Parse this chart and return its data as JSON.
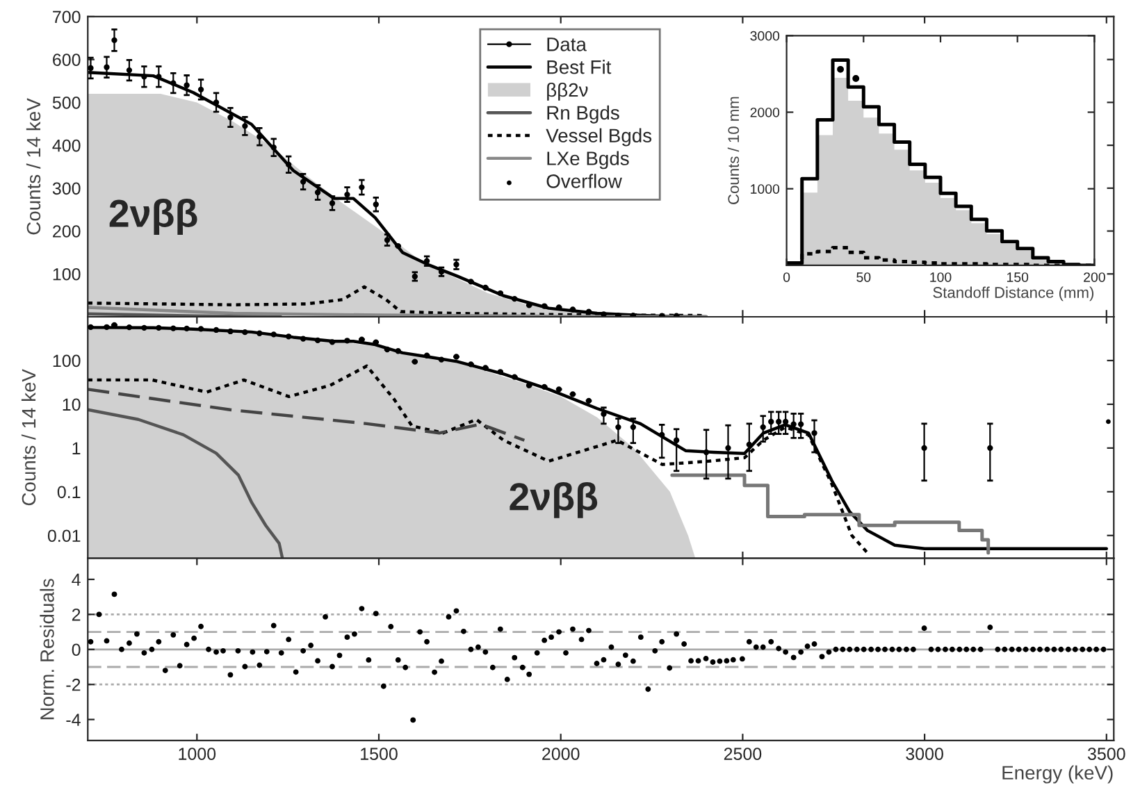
{
  "chart_data": [
    {
      "type": "line",
      "ylabel": "Counts / 14 keV",
      "xlim": [
        700,
        3520
      ],
      "ylim": [
        0,
        700
      ],
      "xticks": [
        1000,
        1500,
        2000,
        2500,
        3000,
        3500
      ],
      "yticks": [
        100,
        200,
        300,
        400,
        500,
        600,
        700
      ],
      "tick_labels": "y",
      "legend": "top",
      "annotations": [
        "2νββ"
      ],
      "series": [
        {
          "name": "Data",
          "type": "scatter",
          "marker": "circle",
          "color": "#000000",
          "x": [
            708,
            752,
            773,
            814,
            855,
            895,
            935,
            972,
            1011,
            1053,
            1092,
            1132,
            1172,
            1211,
            1252,
            1292,
            1332,
            1372,
            1413,
            1453,
            1492,
            1523,
            1553,
            1599,
            1632,
            1672,
            1713,
            1753,
            1793,
            1834,
            1873,
            1913,
            1955,
            1995,
            2033,
            2077,
            2118,
            2158,
            2199,
            2278,
            2318
          ],
          "values": [
            580,
            582,
            645,
            575,
            560,
            560,
            545,
            540,
            530,
            500,
            465,
            445,
            420,
            395,
            355,
            315,
            290,
            265,
            285,
            302,
            262,
            179,
            165,
            94,
            130,
            105,
            122,
            82,
            68,
            55,
            42,
            27,
            25,
            22,
            17,
            12,
            6,
            3,
            3,
            2,
            2
          ],
          "errors": [
            24,
            24,
            25,
            24,
            24,
            24,
            23,
            23,
            23,
            22,
            22,
            21,
            20,
            20,
            19,
            18,
            17,
            16,
            17,
            17,
            16,
            13,
            null,
            10,
            11,
            10,
            11,
            null,
            null,
            null,
            null,
            null,
            null,
            null,
            null,
            null,
            null,
            null,
            null,
            null,
            null
          ]
        },
        {
          "name": "Best Fit",
          "color": "#000000",
          "line_style": "solid",
          "x": [
            700,
            880,
            990,
            1150,
            1265,
            1377,
            1430,
            1490,
            1565,
            1640,
            1715,
            1843,
            1967,
            2100,
            2200,
            2300,
            2400
          ],
          "values": [
            570,
            562,
            523,
            449,
            341,
            276,
            276,
            231,
            150,
            120,
            95,
            49,
            20,
            8,
            4,
            1,
            0
          ]
        },
        {
          "name": "ββ2ν",
          "type": "area",
          "color": "#d0d0d0",
          "x": [
            700,
            900,
            1000,
            1100,
            1200,
            1300,
            1400,
            1500,
            1600,
            1700,
            1800,
            1900,
            2000,
            2100,
            2200,
            2300,
            2400
          ],
          "values": [
            520,
            520,
            500,
            455,
            400,
            330,
            265,
            205,
            140,
            95,
            55,
            30,
            15,
            7,
            3,
            1,
            0
          ]
        },
        {
          "name": "Rn Bgds",
          "color": "#555555",
          "line_style": "solid",
          "x": [
            700,
            1000,
            1230
          ],
          "values": [
            7,
            2,
            0
          ]
        },
        {
          "name": "Vessel Bgds",
          "color": "#000000",
          "line_style": "dotted",
          "x": [
            700,
            900,
            1100,
            1300,
            1400,
            1460,
            1520,
            1560,
            1700,
            2000,
            2400
          ],
          "values": [
            32,
            30,
            28,
            30,
            40,
            70,
            40,
            12,
            8,
            5,
            3
          ]
        },
        {
          "name": "LXe Bgds",
          "color": "#888888",
          "line_style": "solid",
          "x": [
            700,
            1100,
            1500,
            2000,
            2400
          ],
          "values": [
            22,
            8,
            4,
            1,
            0
          ]
        }
      ]
    },
    {
      "type": "line",
      "ylabel": "Counts / 14 keV",
      "log": true,
      "xlim": [
        700,
        3520
      ],
      "ylim": [
        0.003,
        1000
      ],
      "xticks": [
        1000,
        1500,
        2000,
        2500,
        3000,
        3500
      ],
      "yticks": [
        0.01,
        0.1,
        1,
        10,
        100
      ],
      "tick_labels": "y",
      "annotations": [
        "2νββ"
      ],
      "series": [
        {
          "type": "area",
          "color": "#d0d0d0",
          "x": [
            700,
            900,
            1000,
            1100,
            1200,
            1300,
            1400,
            1500,
            1600,
            1700,
            1800,
            1900,
            2000,
            2100,
            2200,
            2300,
            2350,
            2370
          ],
          "values": [
            520,
            520,
            500,
            455,
            400,
            330,
            265,
            205,
            140,
            95,
            55,
            30,
            15,
            5,
            1,
            0.1,
            0.01,
            0.003
          ]
        },
        {
          "color": "#000000",
          "line_style": "solid",
          "x": [
            700,
            880,
            990,
            1150,
            1265,
            1377,
            1430,
            1490,
            1565,
            1640,
            1715,
            1843,
            1967,
            2100,
            2219,
            2343,
            2420,
            2505,
            2557,
            2617,
            2681,
            2745,
            2794,
            2843,
            2918,
            3000,
            3500
          ],
          "values": [
            570,
            562,
            523,
            449,
            341,
            276,
            276,
            231,
            150,
            120,
            95,
            49,
            22,
            8,
            3.6,
            0.87,
            0.8,
            0.75,
            2.2,
            3.4,
            2.2,
            0.18,
            0.035,
            0.013,
            0.006,
            0.005,
            0.005
          ]
        },
        {
          "color": "#000000",
          "line_style": "dotted",
          "x": [
            700,
            877,
            1027,
            1129,
            1253,
            1366,
            1467,
            1542,
            1591,
            1677,
            1768,
            1843,
            1967,
            2155,
            2279,
            2407,
            2505,
            2557,
            2617,
            2681,
            2745,
            2800,
            2843
          ],
          "values": [
            36,
            36,
            19,
            36,
            15,
            27,
            75,
            13,
            3.2,
            2.2,
            4.5,
            1.5,
            0.5,
            1.5,
            0.42,
            0.5,
            0.6,
            1.5,
            3,
            2,
            0.15,
            0.01,
            0.004
          ]
        },
        {
          "color": "#444444",
          "line_style": "dashed",
          "x": [
            700,
            1091,
            1467,
            1666,
            1780,
            1900
          ],
          "values": [
            22,
            7.5,
            3.6,
            2.2,
            3.5,
            1.5
          ]
        },
        {
          "color": "#555555",
          "line_style": "solid",
          "x": [
            700,
            839,
            963,
            1053,
            1114,
            1151,
            1189,
            1226,
            1235
          ],
          "values": [
            7.5,
            4.5,
            2.0,
            0.76,
            0.24,
            0.056,
            0.017,
            0.0066,
            0.003
          ]
        },
        {
          "type": "step",
          "color": "#777777",
          "x": [
            2306,
            2505,
            2569,
            2670,
            2720,
            2820,
            2918,
            2980,
            3095,
            3158,
            3175
          ],
          "values": [
            0.24,
            0.14,
            0.027,
            0.03,
            0.03,
            0.017,
            0.02,
            0.02,
            0.013,
            0.008,
            0.004
          ]
        },
        {
          "type": "scatter",
          "marker": "circle",
          "color": "#000000",
          "x": [
            708,
            752,
            773,
            814,
            855,
            895,
            935,
            972,
            1011,
            1053,
            1092,
            1132,
            1172,
            1211,
            1252,
            1292,
            1332,
            1372,
            1413,
            1453,
            1492,
            1523,
            1553,
            1599,
            1632,
            1672,
            1713,
            1753,
            1793,
            1834,
            1873,
            1913,
            1955,
            1995,
            2033,
            2077,
            2118,
            2158,
            2199,
            2278,
            2318,
            2400,
            2460,
            2518,
            2556,
            2578,
            2599,
            2618,
            2640,
            2660,
            2697,
            2999,
            3180
          ],
          "values": [
            580,
            582,
            645,
            575,
            560,
            560,
            545,
            540,
            530,
            500,
            465,
            445,
            420,
            395,
            355,
            315,
            290,
            265,
            285,
            302,
            262,
            179,
            165,
            94,
            130,
            105,
            122,
            82,
            68,
            55,
            42,
            27,
            25,
            22,
            17,
            12,
            6,
            3,
            3,
            2,
            1.5,
            0.8,
            1,
            1.2,
            3,
            4,
            4,
            4,
            3.5,
            3.5,
            2.2,
            1,
            1
          ],
          "errors": [
            null,
            null,
            null,
            null,
            null,
            null,
            null,
            null,
            null,
            null,
            null,
            null,
            null,
            null,
            null,
            null,
            null,
            null,
            null,
            null,
            null,
            null,
            null,
            null,
            null,
            null,
            null,
            null,
            null,
            null,
            null,
            null,
            null,
            null,
            null,
            null,
            2.4,
            1.7,
            1.7,
            1.4,
            1.2,
            [
              0.2,
              2.6
            ],
            [
              0.2,
              3.3
            ],
            [
              0.3,
              3.6
            ],
            [
              1.4,
              5.4
            ],
            [
              2.1,
              6.7
            ],
            [
              2.1,
              6.7
            ],
            [
              2.1,
              6.7
            ],
            [
              1.7,
              6.1
            ],
            [
              1.7,
              6.1
            ],
            [
              0.8,
              4.3
            ],
            [
              0.18,
              3.6
            ],
            [
              0.18,
              3.6
            ]
          ]
        },
        {
          "name": "Overflow",
          "type": "scatter",
          "marker": "circle",
          "color": "#000000",
          "x": [
            3505
          ],
          "values": [
            4
          ]
        }
      ]
    },
    {
      "type": "scatter",
      "ylabel": "Norm. Residuals",
      "xlabel": "Energy (keV)",
      "xlim": [
        700,
        3520
      ],
      "ylim": [
        -5.2,
        5.2
      ],
      "xticks": [
        1000,
        1500,
        2000,
        2500,
        3000,
        3500
      ],
      "yticks": [
        -4,
        -2,
        0,
        2,
        4
      ],
      "ref_lines": [
        {
          "axis": "y",
          "value": 0,
          "line_style": "solid",
          "color": "#aaaaaa"
        },
        {
          "axis": "y",
          "value": 1,
          "line_style": "dashed",
          "color": "#aaaaaa"
        },
        {
          "axis": "y",
          "value": -1,
          "line_style": "dashed",
          "color": "#aaaaaa"
        },
        {
          "axis": "y",
          "value": 2,
          "line_style": "dotted",
          "color": "#aaaaaa"
        },
        {
          "axis": "y",
          "value": -2,
          "line_style": "dotted",
          "color": "#aaaaaa"
        }
      ],
      "series": [
        {
          "marker": "circle",
          "color": "#000000",
          "x": [
            708,
            731,
            752,
            773,
            793,
            814,
            835,
            855,
            876,
            895,
            913,
            935,
            953,
            972,
            992,
            1011,
            1032,
            1053,
            1072,
            1092,
            1113,
            1132,
            1153,
            1172,
            1192,
            1211,
            1232,
            1252,
            1272,
            1292,
            1313,
            1332,
            1353,
            1372,
            1392,
            1413,
            1433,
            1453,
            1472,
            1492,
            1513,
            1533,
            1553,
            1573,
            1594,
            1613,
            1632,
            1653,
            1672,
            1692,
            1713,
            1733,
            1753,
            1773,
            1793,
            1813,
            1834,
            1853,
            1873,
            1895,
            1913,
            1935,
            1955,
            1974,
            1995,
            2014,
            2033,
            2057,
            2077,
            2099,
            2118,
            2139,
            2158,
            2178,
            2199,
            2220,
            2240,
            2259,
            2278,
            2299,
            2318,
            2339,
            2358,
            2378,
            2399,
            2418,
            2437,
            2456,
            2474,
            2499,
            2518,
            2537,
            2556,
            2578,
            2599,
            2618,
            2640,
            2660,
            2678,
            2697,
            2718,
            2737,
            2756,
            2775,
            2794,
            2814,
            2833,
            2853,
            2872,
            2891,
            2911,
            2930,
            2950,
            2969,
            2999,
            3018,
            3037,
            3057,
            3076,
            3096,
            3115,
            3134,
            3154,
            3180,
            3201,
            3220,
            3240,
            3259,
            3278,
            3298,
            3317,
            3337,
            3356,
            3375,
            3395,
            3414,
            3434,
            3453,
            3472,
            3492
          ],
          "values": [
            0.44,
            2.0,
            0.49,
            3.15,
            0.0,
            0.36,
            0.88,
            -0.2,
            0.0,
            0.44,
            -1.2,
            0.83,
            -0.93,
            0.28,
            0.64,
            1.31,
            0.0,
            -0.15,
            -0.08,
            -1.45,
            -0.08,
            -0.98,
            -0.15,
            -0.9,
            -0.13,
            1.36,
            -0.2,
            0.57,
            -1.29,
            -0.08,
            0.23,
            -0.65,
            1.86,
            -0.98,
            -0.34,
            0.7,
            0.88,
            2.33,
            -0.6,
            2.05,
            -2.1,
            1.3,
            -0.6,
            -1.03,
            -4.03,
            1.0,
            0.44,
            -1.3,
            -0.67,
            1.86,
            2.2,
            1.03,
            0.0,
            0.13,
            -0.15,
            -1.03,
            1.16,
            -1.71,
            -0.47,
            -1.03,
            -1.42,
            -0.2,
            0.52,
            0.7,
            1.0,
            -0.2,
            1.16,
            0.57,
            1.08,
            -0.8,
            -0.59,
            0.13,
            -0.85,
            -0.33,
            -0.67,
            0.7,
            -2.27,
            -0.08,
            0.44,
            -1.06,
            0.88,
            0.31,
            -0.65,
            -0.65,
            -0.52,
            -0.72,
            -0.67,
            -0.65,
            -0.59,
            -0.54,
            0.44,
            0.13,
            0.13,
            0.44,
            0.05,
            -0.15,
            -0.46,
            -0.15,
            0.18,
            0.31,
            -0.41,
            -0.15,
            0.0,
            0,
            0,
            0,
            0,
            0,
            0,
            0,
            0,
            0,
            0,
            0,
            1.21,
            0,
            0,
            0,
            0,
            0,
            0,
            0,
            0,
            1.26,
            0,
            0,
            0,
            0,
            0,
            0,
            0,
            0,
            0,
            0,
            0,
            0,
            0,
            0,
            0,
            0
          ]
        }
      ]
    },
    {
      "type": "histogram",
      "xlabel": "Standoff Distance (mm)",
      "ylabel": "Counts / 10 mm",
      "xlim": [
        0,
        200
      ],
      "ylim": [
        0,
        3000
      ],
      "xticks": [
        0,
        50,
        100,
        150,
        200
      ],
      "yticks": [
        1000,
        2000,
        3000
      ],
      "bins": [
        0,
        10,
        20,
        30,
        40,
        50,
        60,
        70,
        80,
        90,
        100,
        110,
        120,
        130,
        140,
        150,
        160,
        170,
        180,
        190,
        200
      ],
      "series": [
        {
          "color": "#d0d0d0",
          "values": [
            20,
            950,
            1700,
            2450,
            2150,
            1930,
            1720,
            1510,
            1240,
            1080,
            880,
            720,
            550,
            410,
            280,
            190,
            90,
            40,
            10,
            0
          ]
        },
        {
          "type": "step",
          "color": "#000000",
          "line_style": "solid",
          "x": [
            0,
            10,
            20,
            30,
            40,
            50,
            60,
            70,
            80,
            90,
            100,
            110,
            120,
            130,
            140,
            150,
            160,
            170,
            180,
            190,
            200
          ],
          "values": [
            30,
            1130,
            1900,
            2680,
            2330,
            2070,
            1840,
            1610,
            1320,
            1150,
            940,
            770,
            600,
            450,
            310,
            220,
            100,
            50,
            10,
            0,
            0
          ]
        },
        {
          "type": "step",
          "color": "#000000",
          "line_style": "dotted",
          "x": [
            0,
            10,
            20,
            30,
            40,
            50,
            60,
            70,
            80,
            90,
            100,
            110,
            120,
            130,
            140,
            150,
            160,
            170,
            180,
            190,
            200
          ],
          "values": [
            10,
            150,
            180,
            230,
            170,
            100,
            70,
            50,
            40,
            30,
            20,
            20,
            20,
            10,
            10,
            10,
            0,
            0,
            0,
            0,
            0
          ]
        },
        {
          "type": "scatter",
          "marker": "circle",
          "color": "#000000",
          "x": [
            35,
            45
          ],
          "values": [
            2560,
            2440
          ]
        }
      ]
    }
  ]
}
